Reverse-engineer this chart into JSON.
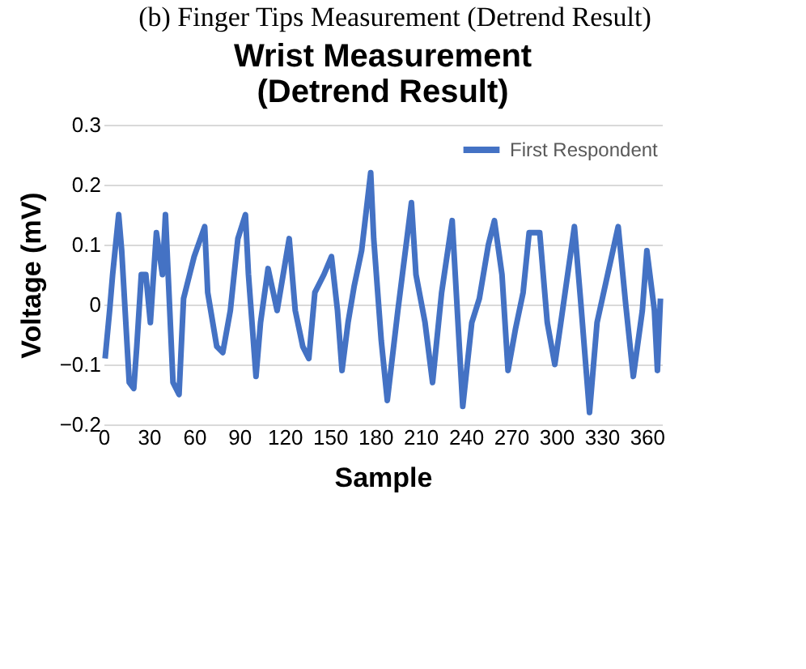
{
  "chart_data": {
    "type": "line",
    "title": "Wrist Measurement\n(Detrend Result)",
    "xlabel": "Sample",
    "ylabel": "Voltage (mV)",
    "annotations": [
      "(b) Finger Tips Measurement (Detrend Result)"
    ],
    "x": [
      1,
      4,
      6,
      10,
      12,
      17,
      20,
      22,
      25,
      28,
      31,
      35,
      39,
      41,
      46,
      50,
      53,
      57,
      60,
      67,
      69,
      75,
      79,
      84,
      89,
      94,
      96,
      101,
      104,
      109,
      115,
      123,
      127,
      132,
      136,
      140,
      146,
      151,
      155,
      158,
      162,
      166,
      171,
      177,
      179,
      184,
      188,
      195,
      198,
      204,
      207,
      213,
      218,
      224,
      231,
      238,
      244,
      249,
      255,
      259,
      264,
      268,
      273,
      278,
      282,
      289,
      294,
      299,
      303,
      312,
      316,
      322,
      327,
      334,
      341,
      346,
      351,
      357,
      360,
      365,
      367,
      369
    ],
    "series": [
      {
        "name": "First Respondent",
        "color": "#4472c4",
        "values": [
          -0.09,
          -0.01,
          0.05,
          0.15,
          0.09,
          -0.13,
          -0.14,
          -0.07,
          0.05,
          0.05,
          -0.03,
          0.12,
          0.05,
          0.15,
          -0.13,
          -0.15,
          0.01,
          0.05,
          0.08,
          0.13,
          0.02,
          -0.07,
          -0.08,
          -0.01,
          0.11,
          0.15,
          0.05,
          -0.12,
          -0.03,
          0.06,
          -0.01,
          0.11,
          -0.01,
          -0.07,
          -0.09,
          0.02,
          0.05,
          0.08,
          -0.01,
          -0.11,
          -0.03,
          0.03,
          0.09,
          0.22,
          0.11,
          -0.06,
          -0.16,
          -0.01,
          0.05,
          0.17,
          0.05,
          -0.03,
          -0.13,
          0.02,
          0.14,
          -0.17,
          -0.03,
          0.01,
          0.1,
          0.14,
          0.05,
          -0.11,
          -0.04,
          0.02,
          0.12,
          0.12,
          -0.03,
          -0.1,
          -0.03,
          0.13,
          0.01,
          -0.18,
          -0.03,
          0.05,
          0.13,
          0.0,
          -0.12,
          -0.01,
          0.09,
          -0.01,
          -0.11,
          0.01
        ]
      }
    ],
    "xlim": [
      0,
      370
    ],
    "xticks": [
      0,
      30,
      60,
      90,
      120,
      150,
      180,
      210,
      240,
      270,
      300,
      330,
      360
    ],
    "ylim": [
      -0.2,
      0.3
    ],
    "yticks": [
      -0.2,
      -0.1,
      0,
      0.1,
      0.2,
      0.3
    ],
    "grid": "y",
    "legend": "top right",
    "marker": "none",
    "line_style": "solid"
  }
}
